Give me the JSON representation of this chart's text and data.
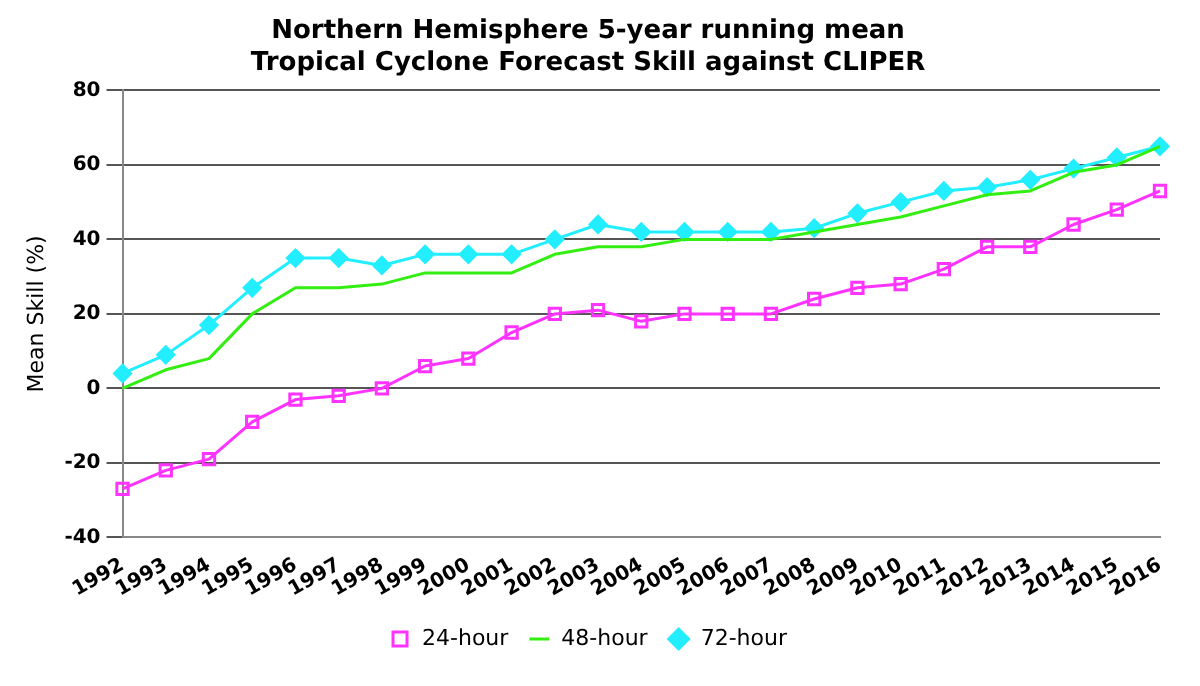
{
  "chart_data": {
    "type": "line",
    "title": "Northern Hemisphere 5-year running mean",
    "subtitle": "Tropical Cyclone Forecast Skill against CLIPER",
    "ylabel": "Mean Skill (%)",
    "categories": [
      "1992",
      "1993",
      "1994",
      "1995",
      "1996",
      "1997",
      "1998",
      "1999",
      "2000",
      "2001",
      "2002",
      "2003",
      "2004",
      "2005",
      "2006",
      "2007",
      "2008",
      "2009",
      "2010",
      "2011",
      "2012",
      "2013",
      "2014",
      "2015",
      "2016"
    ],
    "series": [
      {
        "name": "24-hour",
        "color": "#ff33ff",
        "marker": "square",
        "values": [
          -27,
          -22,
          -19,
          -9,
          -3,
          -2,
          0,
          6,
          8,
          15,
          20,
          21,
          18,
          20,
          20,
          20,
          24,
          27,
          28,
          32,
          38,
          38,
          44,
          48,
          53
        ]
      },
      {
        "name": "48-hour",
        "color": "#33ee11",
        "marker": "none",
        "values": [
          0,
          5,
          8,
          20,
          27,
          27,
          28,
          31,
          31,
          31,
          36,
          38,
          38,
          40,
          40,
          40,
          42,
          44,
          46,
          49,
          52,
          53,
          58,
          60,
          65
        ]
      },
      {
        "name": "72-hour",
        "color": "#22eeff",
        "marker": "diamond",
        "values": [
          4,
          9,
          17,
          27,
          35,
          35,
          33,
          36,
          36,
          36,
          40,
          44,
          42,
          42,
          42,
          42,
          43,
          47,
          50,
          53,
          54,
          56,
          59,
          62,
          65
        ]
      }
    ],
    "ylim": [
      -40,
      80
    ],
    "yticks": [
      -40,
      -20,
      0,
      20,
      40,
      60,
      80
    ],
    "grid": "y",
    "legend": "bottom"
  }
}
